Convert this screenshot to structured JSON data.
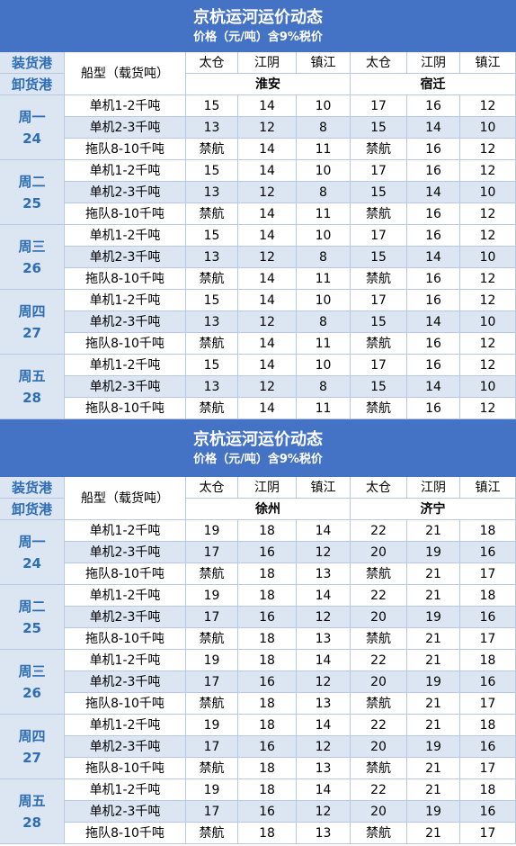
{
  "blocks": [
    {
      "title": "京杭运河运价动态",
      "subtitle": "价格（元/吨）含9%税价",
      "load_label": "装货港",
      "unload_label": "卸货港",
      "type_label": "船型（载货吨）",
      "origins": [
        "太仓",
        "江阴",
        "镇江",
        "太仓",
        "江阴",
        "镇江"
      ],
      "destinations": [
        "淮安",
        "宿迁"
      ],
      "days": [
        {
          "name": "周一",
          "date": "24",
          "rows": [
            {
              "type": "单机1-2千吨",
              "values": [
                "15",
                "14",
                "10",
                "17",
                "16",
                "12"
              ]
            },
            {
              "type": "单机2-3千吨",
              "values": [
                "13",
                "12",
                "8",
                "15",
                "14",
                "10"
              ]
            },
            {
              "type": "拖队8-10千吨",
              "values": [
                "禁航",
                "14",
                "11",
                "禁航",
                "16",
                "12"
              ]
            }
          ]
        },
        {
          "name": "周二",
          "date": "25",
          "rows": [
            {
              "type": "单机1-2千吨",
              "values": [
                "15",
                "14",
                "10",
                "17",
                "16",
                "12"
              ]
            },
            {
              "type": "单机2-3千吨",
              "values": [
                "13",
                "12",
                "8",
                "15",
                "14",
                "10"
              ]
            },
            {
              "type": "拖队8-10千吨",
              "values": [
                "禁航",
                "14",
                "11",
                "禁航",
                "16",
                "12"
              ]
            }
          ]
        },
        {
          "name": "周三",
          "date": "26",
          "rows": [
            {
              "type": "单机1-2千吨",
              "values": [
                "15",
                "14",
                "10",
                "17",
                "16",
                "12"
              ]
            },
            {
              "type": "单机2-3千吨",
              "values": [
                "13",
                "12",
                "8",
                "15",
                "14",
                "10"
              ]
            },
            {
              "type": "拖队8-10千吨",
              "values": [
                "禁航",
                "14",
                "11",
                "禁航",
                "16",
                "12"
              ]
            }
          ]
        },
        {
          "name": "周四",
          "date": "27",
          "rows": [
            {
              "type": "单机1-2千吨",
              "values": [
                "15",
                "14",
                "10",
                "17",
                "16",
                "12"
              ]
            },
            {
              "type": "单机2-3千吨",
              "values": [
                "13",
                "12",
                "8",
                "15",
                "14",
                "10"
              ]
            },
            {
              "type": "拖队8-10千吨",
              "values": [
                "禁航",
                "14",
                "11",
                "禁航",
                "16",
                "12"
              ]
            }
          ]
        },
        {
          "name": "周五",
          "date": "28",
          "rows": [
            {
              "type": "单机1-2千吨",
              "values": [
                "15",
                "14",
                "10",
                "17",
                "16",
                "12"
              ]
            },
            {
              "type": "单机2-3千吨",
              "values": [
                "13",
                "12",
                "8",
                "15",
                "14",
                "10"
              ]
            },
            {
              "type": "拖队8-10千吨",
              "values": [
                "禁航",
                "14",
                "11",
                "禁航",
                "16",
                "12"
              ]
            }
          ]
        }
      ]
    },
    {
      "title": "京杭运河运价动态",
      "subtitle": "价格（元/吨）含9%税价",
      "load_label": "装货港",
      "unload_label": "卸货港",
      "type_label": "船型（载货吨）",
      "origins": [
        "太仓",
        "江阴",
        "镇江",
        "太仓",
        "江阴",
        "镇江"
      ],
      "destinations": [
        "徐州",
        "济宁"
      ],
      "days": [
        {
          "name": "周一",
          "date": "24",
          "rows": [
            {
              "type": "单机1-2千吨",
              "values": [
                "19",
                "18",
                "14",
                "22",
                "21",
                "18"
              ]
            },
            {
              "type": "单机2-3千吨",
              "values": [
                "17",
                "16",
                "12",
                "20",
                "19",
                "16"
              ]
            },
            {
              "type": "拖队8-10千吨",
              "values": [
                "禁航",
                "18",
                "13",
                "禁航",
                "21",
                "17"
              ]
            }
          ]
        },
        {
          "name": "周二",
          "date": "25",
          "rows": [
            {
              "type": "单机1-2千吨",
              "values": [
                "19",
                "18",
                "14",
                "22",
                "21",
                "18"
              ]
            },
            {
              "type": "单机2-3千吨",
              "values": [
                "17",
                "16",
                "12",
                "20",
                "19",
                "16"
              ]
            },
            {
              "type": "拖队8-10千吨",
              "values": [
                "禁航",
                "18",
                "13",
                "禁航",
                "21",
                "17"
              ]
            }
          ]
        },
        {
          "name": "周三",
          "date": "26",
          "rows": [
            {
              "type": "单机1-2千吨",
              "values": [
                "19",
                "18",
                "14",
                "22",
                "21",
                "18"
              ]
            },
            {
              "type": "单机2-3千吨",
              "values": [
                "17",
                "16",
                "12",
                "20",
                "19",
                "16"
              ]
            },
            {
              "type": "拖队8-10千吨",
              "values": [
                "禁航",
                "18",
                "13",
                "禁航",
                "21",
                "17"
              ]
            }
          ]
        },
        {
          "name": "周四",
          "date": "27",
          "rows": [
            {
              "type": "单机1-2千吨",
              "values": [
                "19",
                "18",
                "14",
                "22",
                "21",
                "18"
              ]
            },
            {
              "type": "单机2-3千吨",
              "values": [
                "17",
                "16",
                "12",
                "20",
                "19",
                "16"
              ]
            },
            {
              "type": "拖队8-10千吨",
              "values": [
                "禁航",
                "18",
                "13",
                "禁航",
                "21",
                "17"
              ]
            }
          ]
        },
        {
          "name": "周五",
          "date": "28",
          "rows": [
            {
              "type": "单机1-2千吨",
              "values": [
                "19",
                "18",
                "14",
                "22",
                "21",
                "18"
              ]
            },
            {
              "type": "单机2-3千吨",
              "values": [
                "17",
                "16",
                "12",
                "20",
                "19",
                "16"
              ]
            },
            {
              "type": "拖队8-10千吨",
              "values": [
                "禁航",
                "18",
                "13",
                "禁航",
                "21",
                "17"
              ]
            }
          ]
        }
      ]
    }
  ]
}
